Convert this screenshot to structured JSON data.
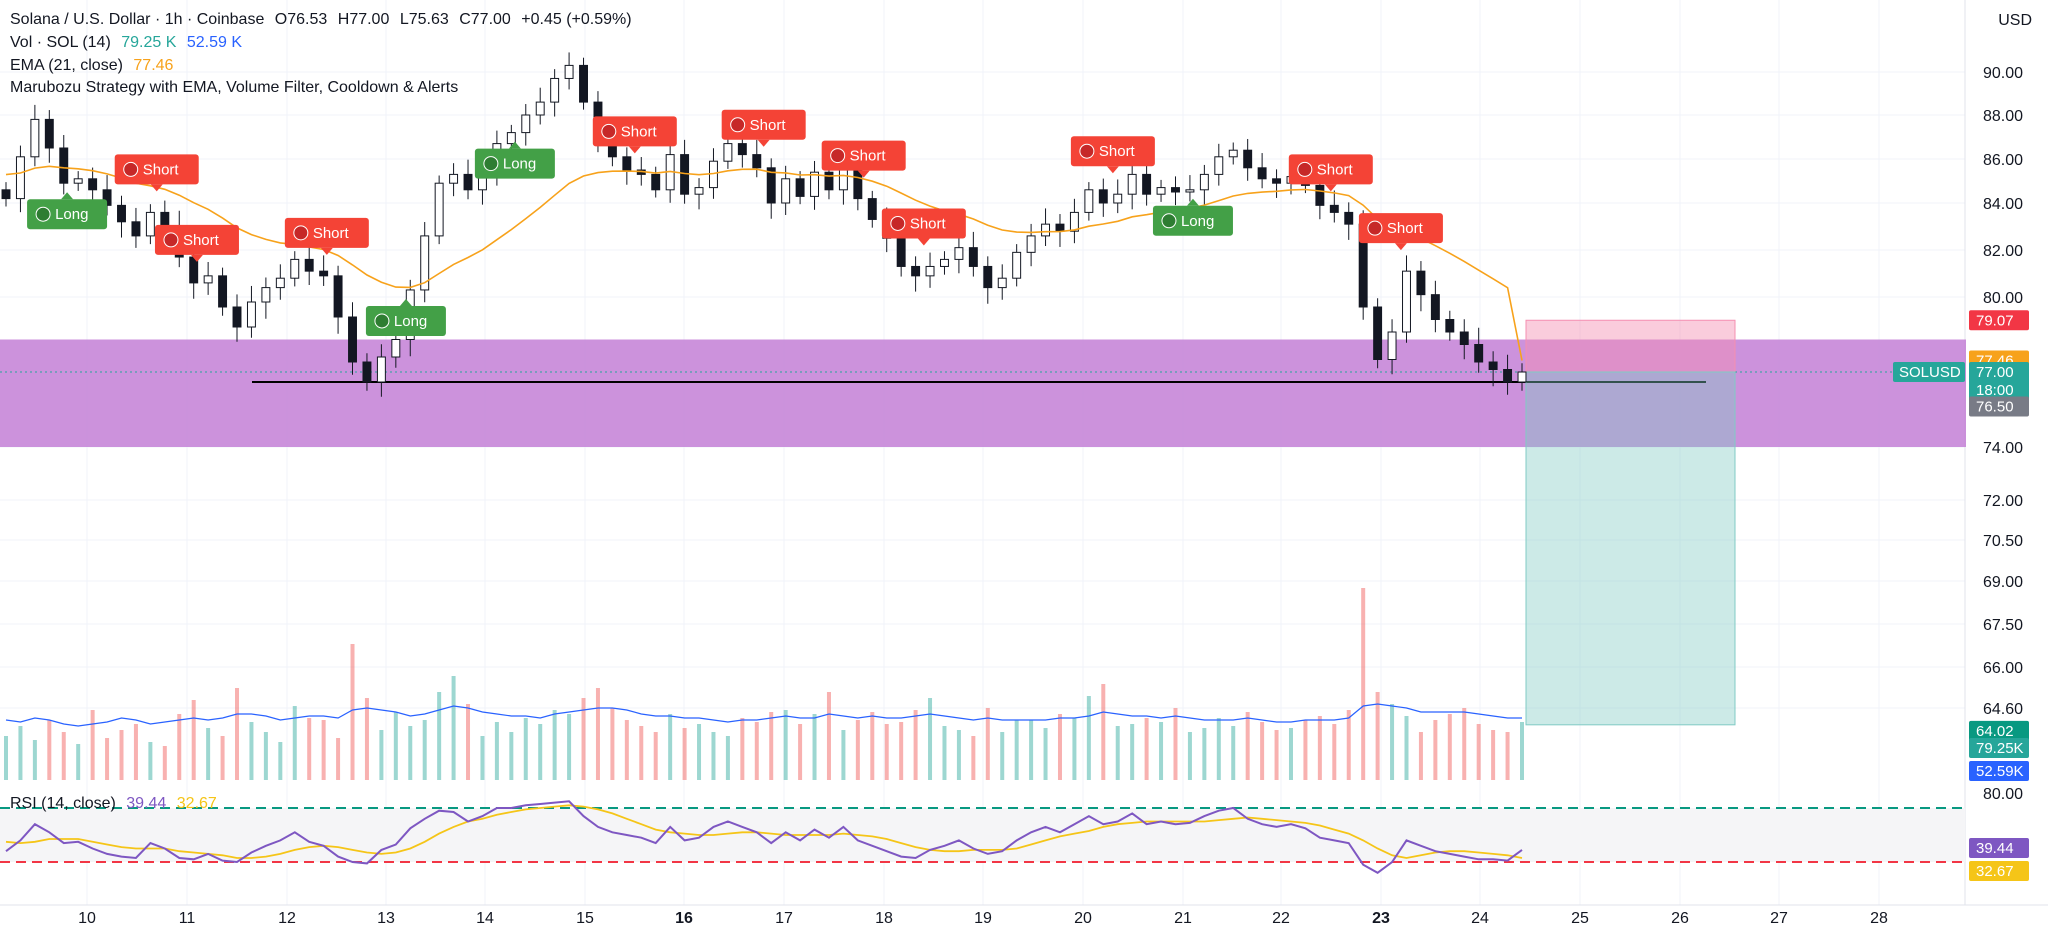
{
  "header": {
    "symbol": "Solana / U.S. Dollar · 1h · Coinbase",
    "open_label": "O",
    "open": "76.53",
    "high_label": "H",
    "high": "77.00",
    "low_label": "L",
    "low": "75.63",
    "close_label": "C",
    "close": "77.00",
    "change": "+0.45 (+0.59%)",
    "vol_label": "Vol · SOL (14)",
    "vol_value": "79.25 K",
    "vol_ma": "52.59 K",
    "ema_label": "EMA (21, close)",
    "ema_value": "77.46",
    "strategy_label": "Marubozu Strategy with EMA, Volume Filter, Cooldown & Alerts",
    "rsi_label": "RSI (14, close)",
    "rsi_value": "39.44",
    "rsi_ma": "32.67"
  },
  "currency": "USD",
  "colors": {
    "up": "#26a69a",
    "down": "#ef5350",
    "ema": "#f7a21b",
    "zone": "#c37fd6",
    "vol_ma": "#2962ff",
    "rsi": "#7e57c2",
    "rsi_ma": "#f5c518",
    "long_badge": "#43a047",
    "short_badge": "#f44336"
  },
  "chart_data": [
    {
      "type": "candlestick",
      "x_ticks": [
        "10",
        "11",
        "12",
        "13",
        "14",
        "15",
        "16",
        "17",
        "18",
        "19",
        "20",
        "21",
        "22",
        "23",
        "24",
        "25",
        "26",
        "27",
        "28"
      ],
      "y_ticks": [
        "90.00",
        "88.00",
        "86.00",
        "84.00",
        "82.00",
        "80.00",
        "74.00",
        "72.00",
        "70.50",
        "69.00",
        "67.50",
        "66.00",
        "64.60"
      ],
      "ylim": [
        64,
        91
      ],
      "close_series": [
        84.2,
        86.1,
        87.8,
        86.5,
        84.9,
        85.1,
        84.6,
        83.9,
        83.2,
        82.6,
        83.6,
        83.0,
        81.7,
        80.6,
        80.9,
        79.6,
        78.8,
        79.8,
        80.4,
        80.8,
        81.6,
        81.1,
        80.9,
        79.2,
        77.4,
        76.6,
        77.6,
        78.3,
        80.3,
        82.6,
        84.9,
        85.3,
        84.6,
        85.3,
        86.7,
        87.2,
        88.0,
        88.6,
        89.7,
        90.3,
        88.6,
        86.9,
        86.1,
        85.5,
        85.3,
        84.6,
        86.2,
        84.4,
        84.7,
        85.9,
        86.7,
        86.2,
        85.6,
        84.0,
        85.1,
        84.3,
        85.4,
        84.6,
        85.6,
        84.2,
        83.3,
        82.5,
        81.3,
        80.9,
        81.3,
        81.6,
        82.1,
        81.3,
        80.4,
        80.8,
        81.9,
        82.6,
        83.1,
        82.8,
        83.6,
        84.6,
        84.0,
        84.4,
        85.3,
        84.4,
        84.7,
        84.5,
        84.6,
        85.3,
        86.1,
        86.4,
        85.6,
        85.1,
        84.9,
        85.2,
        84.8,
        83.9,
        83.6,
        83.1,
        79.6,
        77.5,
        78.6,
        81.1,
        80.1,
        79.1,
        78.6,
        78.1,
        77.4,
        77.1,
        76.6,
        77.0
      ],
      "ema_value": 77.46,
      "buy_signals": [
        {
          "label": "Long",
          "x": "9.8"
        },
        {
          "label": "Long",
          "x": "13.2"
        },
        {
          "label": "Long",
          "x": "14.3"
        },
        {
          "label": "Long",
          "x": "21.1"
        }
      ],
      "sell_signals": [
        {
          "label": "Short",
          "x": "10.7"
        },
        {
          "label": "Short",
          "x": "11.1"
        },
        {
          "label": "Short",
          "x": "12.4"
        },
        {
          "label": "Short",
          "x": "15.5"
        },
        {
          "label": "Short",
          "x": "16.8"
        },
        {
          "label": "Short",
          "x": "17.8"
        },
        {
          "label": "Short",
          "x": "18.4"
        },
        {
          "label": "Short",
          "x": "20.3"
        },
        {
          "label": "Short",
          "x": "22.5"
        },
        {
          "label": "Short",
          "x": "23.2"
        }
      ],
      "support_zone": [
        74.0,
        78.3
      ],
      "support_line": 76.6,
      "position": {
        "entry": 77.0,
        "stop": 79.07,
        "target": 64.02
      },
      "price_labels": {
        "stop": "79.07",
        "ema": "77.46",
        "symbol": "SOLUSD",
        "last": "77.00",
        "countdown": "18:00",
        "low": "76.50",
        "target": "64.02",
        "vol": "79.25K",
        "vol_ma": "52.59K"
      },
      "volume_series": [
        22,
        27,
        20,
        30,
        24,
        18,
        35,
        21,
        25,
        28,
        19,
        17,
        33,
        40,
        26,
        22,
        46,
        29,
        24,
        19,
        37,
        31,
        30,
        21,
        68,
        41,
        25,
        34,
        27,
        30,
        44,
        52,
        38,
        22,
        29,
        24,
        31,
        28,
        35,
        33,
        41,
        46,
        36,
        30,
        27,
        24,
        33,
        26,
        28,
        24,
        22,
        31,
        29,
        34,
        35,
        28,
        33,
        44,
        25,
        30,
        34,
        28,
        29,
        35,
        41,
        27,
        25,
        22,
        36,
        24,
        30,
        30,
        26,
        33,
        31,
        42,
        48,
        27,
        28,
        31,
        29,
        36,
        24,
        26,
        31,
        27,
        34,
        29,
        25,
        26,
        30,
        32,
        28,
        35,
        96,
        44,
        38,
        32,
        24,
        30,
        33,
        36,
        28,
        25,
        24,
        29
      ],
      "volume_ma_series": [
        30,
        29,
        31,
        30,
        28,
        27,
        28,
        29,
        31,
        30,
        28,
        29,
        30,
        31,
        30,
        31,
        33,
        33,
        32,
        30,
        31,
        32,
        32,
        31,
        35,
        36,
        35,
        34,
        32,
        33,
        35,
        37,
        36,
        34,
        33,
        32,
        32,
        31,
        33,
        34,
        35,
        36,
        36,
        35,
        33,
        32,
        32,
        31,
        31,
        30,
        29,
        30,
        30,
        31,
        32,
        31,
        31,
        33,
        32,
        31,
        32,
        31,
        31,
        32,
        33,
        32,
        31,
        30,
        31,
        30,
        30,
        30,
        30,
        31,
        31,
        32,
        34,
        33,
        32,
        32,
        31,
        32,
        31,
        30,
        30,
        30,
        31,
        30,
        29,
        29,
        30,
        30,
        30,
        31,
        37,
        38,
        37,
        36,
        34,
        34,
        34,
        34,
        33,
        32,
        31,
        31
      ],
      "rsi_ticks": [
        "80.00"
      ],
      "rsi_levels": [
        70,
        30
      ],
      "rsi_series": [
        38,
        46,
        58,
        52,
        44,
        45,
        40,
        36,
        34,
        33,
        44,
        40,
        33,
        32,
        36,
        31,
        30,
        37,
        42,
        46,
        52,
        45,
        42,
        34,
        30,
        29,
        39,
        43,
        55,
        62,
        68,
        67,
        60,
        64,
        70,
        70,
        72,
        73,
        74,
        75,
        64,
        56,
        52,
        50,
        48,
        44,
        56,
        46,
        48,
        56,
        60,
        56,
        52,
        44,
        52,
        46,
        54,
        48,
        56,
        46,
        42,
        38,
        34,
        33,
        39,
        42,
        46,
        40,
        36,
        38,
        46,
        52,
        56,
        52,
        58,
        64,
        58,
        60,
        66,
        58,
        60,
        58,
        59,
        64,
        68,
        70,
        62,
        58,
        56,
        58,
        55,
        48,
        46,
        44,
        28,
        22,
        30,
        46,
        42,
        38,
        36,
        34,
        32,
        32,
        31,
        39
      ],
      "rsi_ma_series": [
        45,
        44,
        45,
        47,
        47,
        47,
        45,
        43,
        41,
        40,
        40,
        40,
        38,
        37,
        36,
        35,
        33,
        33,
        34,
        36,
        39,
        41,
        42,
        41,
        39,
        37,
        36,
        37,
        40,
        45,
        51,
        56,
        60,
        62,
        65,
        67,
        69,
        70,
        71,
        72,
        71,
        69,
        66,
        62,
        58,
        54,
        52,
        51,
        50,
        50,
        51,
        52,
        52,
        51,
        50,
        50,
        50,
        50,
        51,
        50,
        49,
        47,
        44,
        41,
        39,
        38,
        38,
        39,
        39,
        39,
        40,
        43,
        46,
        49,
        51,
        53,
        56,
        58,
        59,
        60,
        60,
        60,
        60,
        60,
        61,
        62,
        63,
        62,
        61,
        60,
        59,
        57,
        54,
        51,
        46,
        40,
        35,
        33,
        35,
        37,
        38,
        38,
        37,
        36,
        35,
        33
      ],
      "rsi_last": "39.44",
      "rsi_ma_last": "32.67"
    }
  ]
}
